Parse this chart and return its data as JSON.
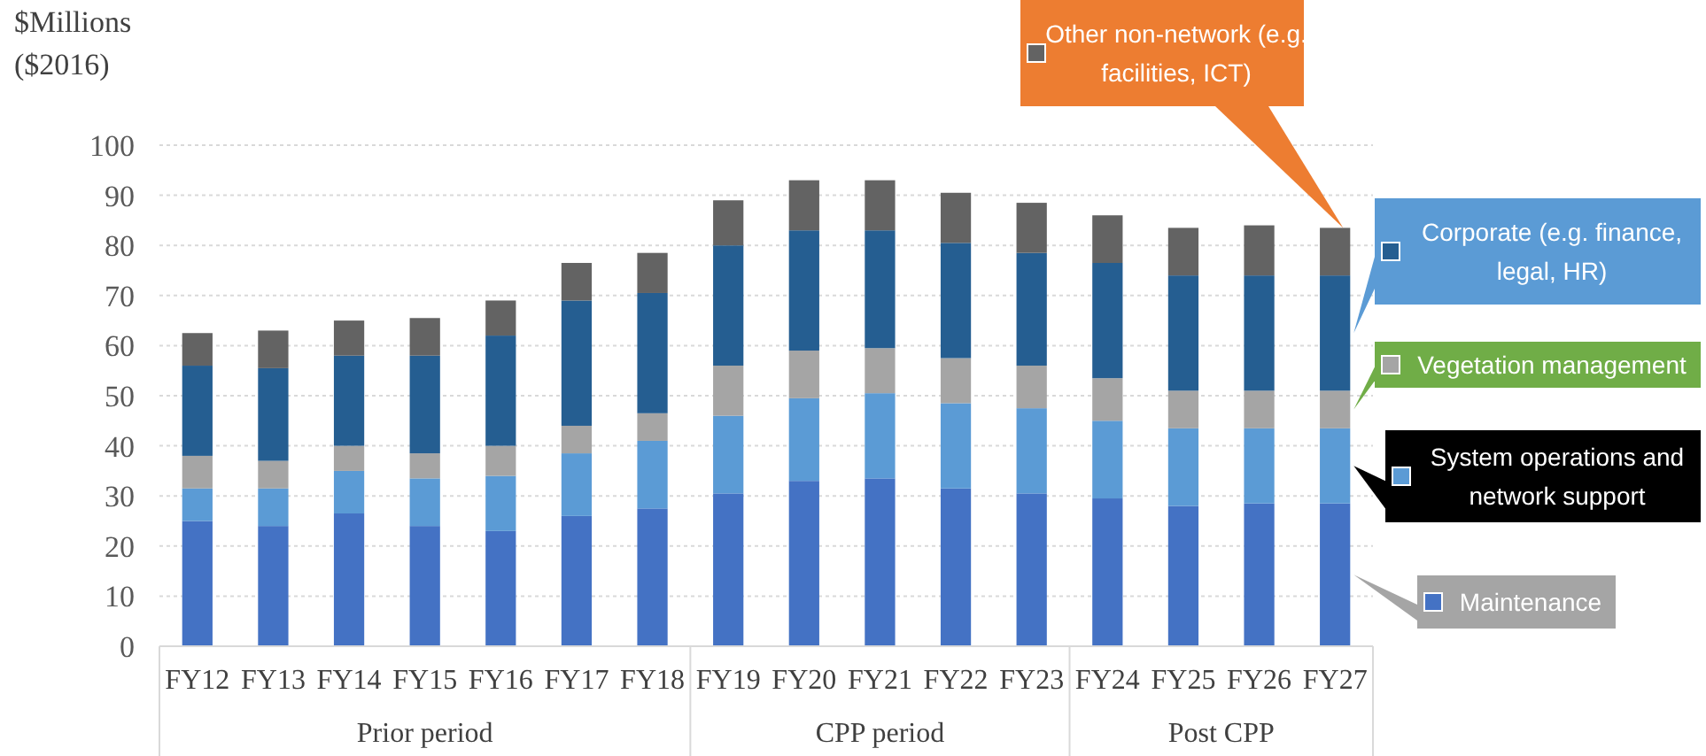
{
  "chart_data": {
    "type": "bar",
    "stacked": true,
    "ylabel": "$Millions ($2016)",
    "categories": [
      "FY12",
      "FY13",
      "FY14",
      "FY15",
      "FY16",
      "FY17",
      "FY18",
      "FY19",
      "FY20",
      "FY21",
      "FY22",
      "FY23",
      "FY24",
      "FY25",
      "FY26",
      "FY27"
    ],
    "series": [
      {
        "name": "Maintenance",
        "color": "#4472c4",
        "values": [
          25,
          24,
          26.5,
          24,
          23,
          26,
          27.5,
          30.5,
          33,
          33.5,
          31.5,
          30.5,
          29.5,
          28,
          28.5,
          28.5
        ]
      },
      {
        "name": "System operations and network support",
        "color": "#5b9bd5",
        "values": [
          6.5,
          7.5,
          8.5,
          9.5,
          11,
          12.5,
          13.5,
          15.5,
          16.5,
          17,
          17,
          17,
          15.5,
          15.5,
          15,
          15
        ]
      },
      {
        "name": "Vegetation management",
        "color": "#a5a5a5",
        "values": [
          6.5,
          5.5,
          5,
          5,
          6,
          5.5,
          5.5,
          10,
          9.5,
          9,
          9,
          8.5,
          8.5,
          7.5,
          7.5,
          7.5
        ]
      },
      {
        "name": "Corporate (e.g. finance, legal, HR)",
        "color": "#255e91",
        "values": [
          18,
          18.5,
          18,
          19.5,
          22,
          25,
          24,
          24,
          24,
          23.5,
          23,
          22.5,
          23,
          23,
          23,
          23
        ]
      },
      {
        "name": "Other non-network (e.g. facilities, ICT)",
        "color": "#636363",
        "values": [
          6.5,
          7.5,
          7,
          7.5,
          7,
          7.5,
          8,
          9,
          10,
          10,
          10,
          10,
          9.5,
          9.5,
          10,
          9.5
        ]
      }
    ],
    "ylim": [
      0,
      100
    ],
    "yticks": [
      0,
      10,
      20,
      30,
      40,
      50,
      60,
      70,
      80,
      90,
      100
    ],
    "grid": "y",
    "legend": "right",
    "annotations": [
      "Prior period",
      "CPP period",
      "Post CPP"
    ]
  }
}
